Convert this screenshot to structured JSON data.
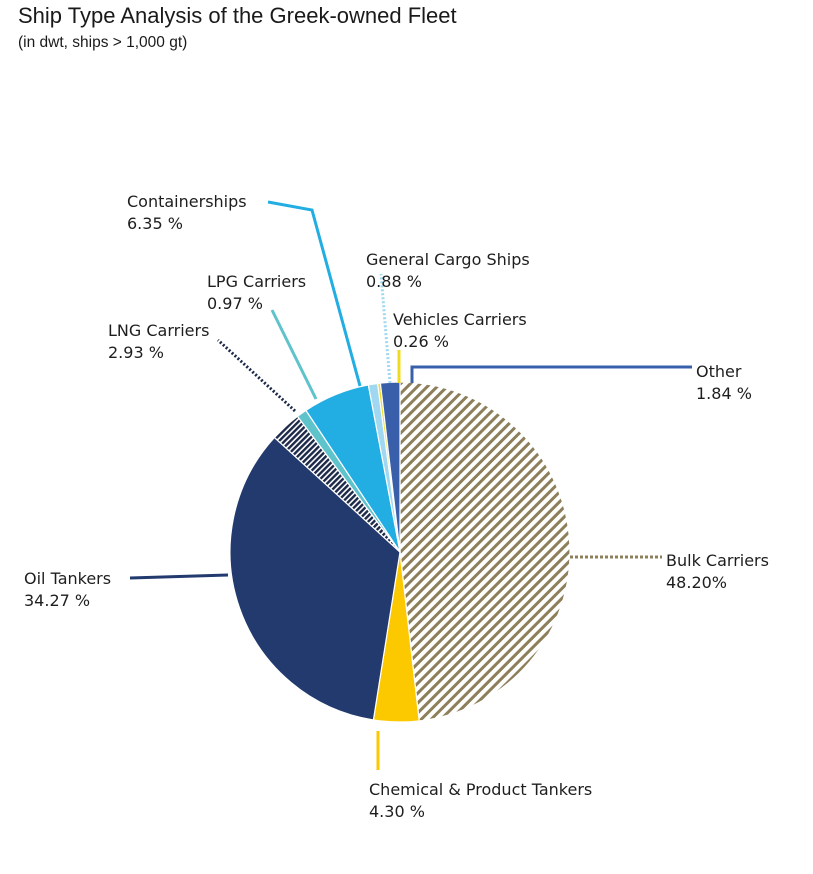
{
  "title": "Ship Type Analysis of the Greek-owned Fleet",
  "subtitle": "(in dwt, ships > 1,000 gt)",
  "chart_data": {
    "type": "pie",
    "title": "Ship Type Analysis of the Greek-owned Fleet",
    "subtitle": "(in dwt, ships > 1,000 gt)",
    "slices": [
      {
        "name": "Bulk Carriers",
        "value": 48.2,
        "label": "48.20%",
        "color": "#8c7f5a",
        "hatch": true
      },
      {
        "name": "Chemical & Product Tankers",
        "value": 4.3,
        "label": "4.30 %",
        "color": "#fcc900"
      },
      {
        "name": "Oil Tankers",
        "value": 34.27,
        "label": "34.27 %",
        "color": "#233a6f"
      },
      {
        "name": "LNG Carriers",
        "value": 2.93,
        "label": "2.93 %",
        "color": "#1c2848",
        "hatch": true
      },
      {
        "name": "LPG Carriers",
        "value": 0.97,
        "label": "0.97 %",
        "color": "#5fc3cc"
      },
      {
        "name": "Containerships",
        "value": 6.35,
        "label": "6.35 %",
        "color": "#22ade3"
      },
      {
        "name": "General Cargo Ships",
        "value": 0.88,
        "label": "0.88 %",
        "color": "#9fd8f0"
      },
      {
        "name": "Vehicles Carriers",
        "value": 0.26,
        "label": "0.26 %",
        "color": "#f0dc1e"
      },
      {
        "name": "Other",
        "value": 1.84,
        "label": "1.84 %",
        "color": "#3a5faa"
      }
    ]
  }
}
